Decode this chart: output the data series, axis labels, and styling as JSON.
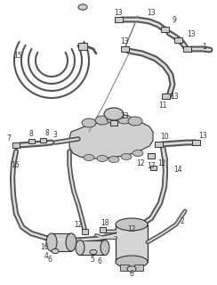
{
  "bg_color": "#ffffff",
  "fg_color": "#333333",
  "figsize": [
    2.44,
    3.2
  ],
  "dpi": 100,
  "line_color": "#555555",
  "dark_color": "#333333",
  "light_color": "#aaaaaa",
  "label_fs": 5.5
}
